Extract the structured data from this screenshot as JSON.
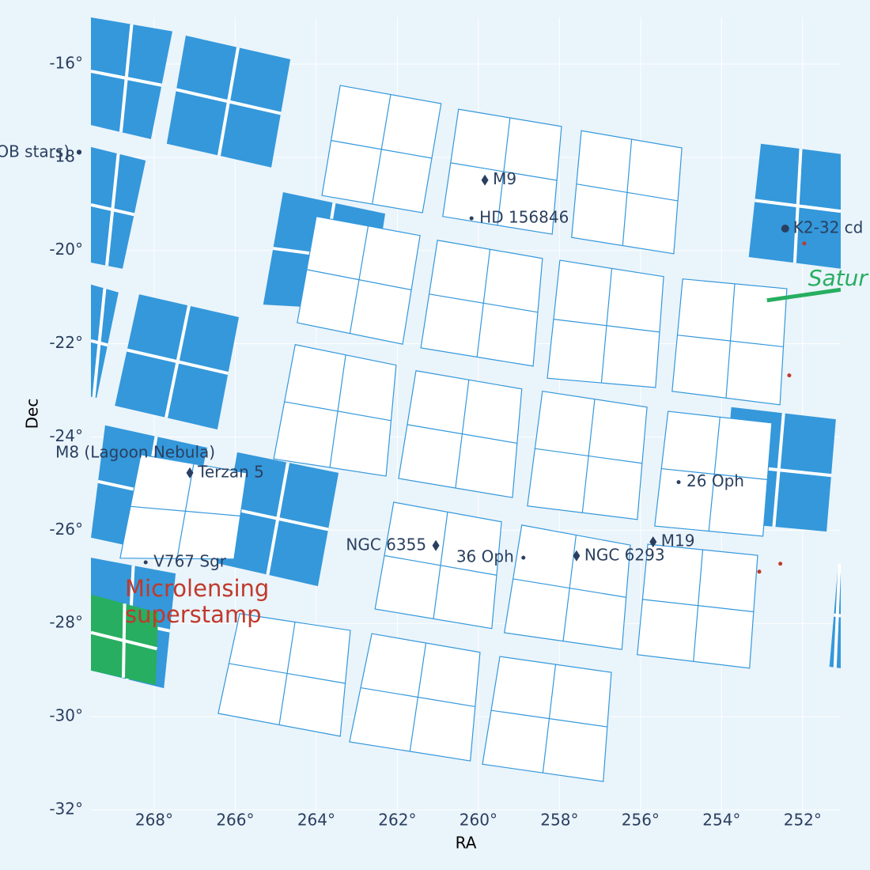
{
  "chart_data": {
    "type": "footprint",
    "xlabel": "RA",
    "ylabel": "Dec",
    "xlim": [
      269.56,
      251.06
    ],
    "ylim": [
      -32,
      -15
    ],
    "xticks": [
      {
        "value": 268,
        "label": "268°"
      },
      {
        "value": 266,
        "label": "266°"
      },
      {
        "value": 264,
        "label": "264°"
      },
      {
        "value": 262,
        "label": "262°"
      },
      {
        "value": 260,
        "label": "260°"
      },
      {
        "value": 258,
        "label": "258°"
      },
      {
        "value": 256,
        "label": "256°"
      },
      {
        "value": 254,
        "label": "254°"
      },
      {
        "value": 252,
        "label": "252°"
      }
    ],
    "yticks": [
      {
        "value": -16,
        "label": "-16°"
      },
      {
        "value": -18,
        "label": "-18°"
      },
      {
        "value": -20,
        "label": "-20°"
      },
      {
        "value": -22,
        "label": "-22°"
      },
      {
        "value": -24,
        "label": "-24°"
      },
      {
        "value": -26,
        "label": "-26°"
      },
      {
        "value": -28,
        "label": "-28°"
      },
      {
        "value": -30,
        "label": "-30°"
      },
      {
        "value": -32,
        "label": "-32°"
      }
    ],
    "grid": true,
    "footprints": [
      {
        "color": "#3498db",
        "filled": true,
        "modules": [
          [
            [
              269.56,
              -15.0
            ],
            [
              267.55,
              -15.3
            ],
            [
              268.08,
              -17.61
            ],
            [
              269.56,
              -17.31
            ]
          ],
          [
            [
              267.22,
              -15.39
            ],
            [
              264.64,
              -15.9
            ],
            [
              265.11,
              -18.22
            ],
            [
              267.69,
              -17.71
            ]
          ],
          [
            [
              269.56,
              -17.78
            ],
            [
              268.21,
              -18.07
            ],
            [
              268.78,
              -20.39
            ],
            [
              269.56,
              -20.26
            ]
          ],
          [
            [
              264.82,
              -18.75
            ],
            [
              262.3,
              -19.21
            ],
            [
              262.67,
              -21.29
            ],
            [
              265.31,
              -21.16
            ]
          ],
          [
            [
              269.56,
              -20.73
            ],
            [
              268.88,
              -20.9
            ],
            [
              269.42,
              -23.16
            ],
            [
              269.56,
              -23.14
            ]
          ],
          [
            [
              268.37,
              -20.94
            ],
            [
              265.91,
              -21.43
            ],
            [
              266.44,
              -23.84
            ],
            [
              268.97,
              -23.33
            ]
          ],
          [
            [
              253.03,
              -17.71
            ],
            [
              251.06,
              -17.93
            ],
            [
              251.06,
              -20.39
            ],
            [
              253.33,
              -20.14
            ]
          ],
          [
            [
              269.21,
              -23.75
            ],
            [
              266.69,
              -24.23
            ],
            [
              267.28,
              -26.59
            ],
            [
              269.56,
              -26.16
            ]
          ],
          [
            [
              265.95,
              -24.33
            ],
            [
              263.45,
              -24.77
            ],
            [
              263.96,
              -27.2
            ],
            [
              266.44,
              -26.71
            ]
          ],
          [
            [
              269.56,
              -26.59
            ],
            [
              267.47,
              -26.93
            ],
            [
              267.76,
              -29.39
            ],
            [
              269.56,
              -29.01
            ]
          ],
          [
            [
              253.76,
              -23.36
            ],
            [
              251.18,
              -23.62
            ],
            [
              251.41,
              -26.03
            ],
            [
              254.01,
              -25.82
            ]
          ],
          [
            [
              251.12,
              -26.71
            ],
            [
              251.06,
              -26.71
            ],
            [
              251.06,
              -28.96
            ],
            [
              251.34,
              -28.93
            ]
          ]
        ]
      },
      {
        "color": "#27ae60",
        "filled": true,
        "modules": [
          [
            [
              269.56,
              -27.38
            ],
            [
              267.9,
              -27.77
            ],
            [
              267.96,
              -29.32
            ],
            [
              269.56,
              -29.01
            ]
          ]
        ]
      },
      {
        "color": "#3498db",
        "filled": false,
        "modules": [
          [
            [
              263.41,
              -16.46
            ],
            [
              260.92,
              -16.85
            ],
            [
              261.38,
              -19.19
            ],
            [
              263.86,
              -18.82
            ]
          ],
          [
            [
              260.49,
              -16.97
            ],
            [
              257.95,
              -17.34
            ],
            [
              258.18,
              -19.65
            ],
            [
              260.88,
              -19.27
            ]
          ],
          [
            [
              257.46,
              -17.43
            ],
            [
              254.98,
              -17.8
            ],
            [
              255.18,
              -20.07
            ],
            [
              257.7,
              -19.72
            ]
          ],
          [
            [
              264.0,
              -19.27
            ],
            [
              261.44,
              -19.68
            ],
            [
              261.87,
              -22.01
            ],
            [
              264.47,
              -21.55
            ]
          ],
          [
            [
              261.01,
              -19.78
            ],
            [
              258.42,
              -20.17
            ],
            [
              258.65,
              -22.48
            ],
            [
              261.42,
              -22.09
            ]
          ],
          [
            [
              257.99,
              -20.21
            ],
            [
              255.43,
              -20.56
            ],
            [
              255.63,
              -22.94
            ],
            [
              258.3,
              -22.74
            ]
          ],
          [
            [
              254.96,
              -20.61
            ],
            [
              252.39,
              -20.82
            ],
            [
              252.56,
              -23.31
            ],
            [
              255.22,
              -23.02
            ]
          ],
          [
            [
              264.52,
              -22.02
            ],
            [
              262.03,
              -22.46
            ],
            [
              262.28,
              -24.84
            ],
            [
              265.05,
              -24.47
            ]
          ],
          [
            [
              261.54,
              -22.58
            ],
            [
              258.93,
              -22.97
            ],
            [
              259.16,
              -25.3
            ],
            [
              261.97,
              -24.89
            ]
          ],
          [
            [
              258.42,
              -23.02
            ],
            [
              255.84,
              -23.36
            ],
            [
              256.08,
              -25.77
            ],
            [
              258.79,
              -25.48
            ]
          ],
          [
            [
              255.32,
              -23.45
            ],
            [
              252.76,
              -23.7
            ],
            [
              252.98,
              -26.13
            ],
            [
              255.65,
              -25.91
            ]
          ],
          [
            [
              262.09,
              -25.4
            ],
            [
              259.43,
              -25.82
            ],
            [
              259.67,
              -28.11
            ],
            [
              262.55,
              -27.69
            ]
          ],
          [
            [
              258.93,
              -25.89
            ],
            [
              256.25,
              -26.32
            ],
            [
              256.46,
              -28.56
            ],
            [
              259.36,
              -28.2
            ]
          ],
          [
            [
              255.82,
              -26.3
            ],
            [
              253.11,
              -26.54
            ],
            [
              253.31,
              -28.96
            ],
            [
              256.08,
              -28.67
            ]
          ],
          [
            [
              268.33,
              -24.38
            ],
            [
              265.72,
              -24.77
            ],
            [
              266.03,
              -26.62
            ],
            [
              268.84,
              -26.6
            ]
          ],
          [
            [
              265.89,
              -27.79
            ],
            [
              263.16,
              -28.15
            ],
            [
              263.41,
              -30.42
            ],
            [
              266.42,
              -29.93
            ]
          ],
          [
            [
              262.63,
              -28.22
            ],
            [
              259.96,
              -28.62
            ],
            [
              260.2,
              -30.95
            ],
            [
              263.18,
              -30.54
            ]
          ],
          [
            [
              259.47,
              -28.71
            ],
            [
              256.72,
              -29.05
            ],
            [
              256.92,
              -31.39
            ],
            [
              259.9,
              -31.02
            ]
          ]
        ]
      }
    ],
    "track": {
      "name": "Satur",
      "color": "#27ae60",
      "ra": [
        252.88,
        251.06
      ],
      "dec": [
        -21.07,
        -20.84
      ]
    },
    "points": {
      "color": "#c0392b",
      "ra": [
        251.96,
        252.33,
        253.07,
        252.55
      ],
      "dec": [
        -19.85,
        -22.68,
        -26.89,
        -26.72
      ]
    },
    "targets": [
      {
        "name": "M9",
        "ra": 259.84,
        "dec": -18.49,
        "marker": "diamond",
        "side": "right"
      },
      {
        "name": "HD 156846",
        "ra": 260.17,
        "dec": -19.31,
        "marker": "dot",
        "side": "right"
      },
      {
        "name": "K2-32 cd",
        "ra": 252.43,
        "dec": -19.53,
        "marker": "bigdot",
        "side": "right"
      },
      {
        "name": "OB stars)",
        "ra": 269.85,
        "dec": -17.9,
        "marker": "dot",
        "side": "left"
      },
      {
        "name": "M8 (Lagoon Nebula)",
        "ra": 266.26,
        "dec": -24.35,
        "marker": "none",
        "side": "left"
      },
      {
        "name": "Terzan 5",
        "ra": 267.12,
        "dec": -24.77,
        "marker": "diamond",
        "side": "right"
      },
      {
        "name": "26 Oph",
        "ra": 255.06,
        "dec": -24.97,
        "marker": "dot",
        "side": "right"
      },
      {
        "name": "M19",
        "ra": 255.69,
        "dec": -26.25,
        "marker": "diamond",
        "side": "right"
      },
      {
        "name": "NGC 6355",
        "ra": 261.05,
        "dec": -26.33,
        "marker": "diamond",
        "side": "left"
      },
      {
        "name": "36 Oph",
        "ra": 258.89,
        "dec": -26.59,
        "marker": "dot",
        "side": "left"
      },
      {
        "name": "NGC 6293",
        "ra": 257.58,
        "dec": -26.55,
        "marker": "diamond",
        "side": "right"
      },
      {
        "name": "V767 Sgr",
        "ra": 268.21,
        "dec": -26.69,
        "marker": "dot",
        "side": "right"
      }
    ],
    "annotation": [
      "Microlensing",
      "superstamp"
    ]
  }
}
